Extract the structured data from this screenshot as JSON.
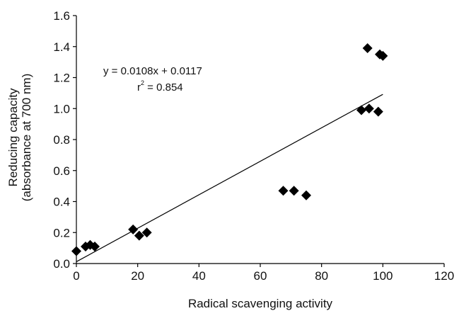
{
  "chart_data": {
    "type": "scatter",
    "xlabel": "Radical scavenging activity",
    "ylabel": [
      "Reducing capacity",
      "(absorbance at 700 nm)"
    ],
    "xlim": [
      0,
      120
    ],
    "ylim": [
      0.0,
      1.6
    ],
    "x_ticks": [
      0,
      20,
      40,
      60,
      80,
      100,
      120
    ],
    "y_ticks": [
      "0.0",
      "0.2",
      "0.4",
      "0.6",
      "0.8",
      "1.0",
      "1.2",
      "1.4",
      "1.6"
    ],
    "grid": false,
    "legend": "none",
    "marker": "diamond",
    "marker_color": "#000000",
    "series": [
      {
        "points": [
          {
            "x": 0,
            "y": 0.08
          },
          {
            "x": 3,
            "y": 0.11
          },
          {
            "x": 4.5,
            "y": 0.12
          },
          {
            "x": 6,
            "y": 0.11
          },
          {
            "x": 18.5,
            "y": 0.22
          },
          {
            "x": 20.5,
            "y": 0.18
          },
          {
            "x": 23,
            "y": 0.2
          },
          {
            "x": 67.5,
            "y": 0.47
          },
          {
            "x": 71,
            "y": 0.47
          },
          {
            "x": 75,
            "y": 0.44
          },
          {
            "x": 93,
            "y": 0.99
          },
          {
            "x": 95.5,
            "y": 1.0
          },
          {
            "x": 98.5,
            "y": 0.98
          },
          {
            "x": 95,
            "y": 1.39
          },
          {
            "x": 99,
            "y": 1.35
          },
          {
            "x": 100,
            "y": 1.34
          }
        ]
      }
    ],
    "trendline": {
      "slope": 0.0108,
      "intercept": 0.0117,
      "x_range": [
        0,
        100
      ],
      "color": "#000000"
    },
    "annotations": {
      "equation": "y = 0.0108x + 0.0117",
      "r_prefix": "r",
      "r_sup": "2",
      "r_value": " = 0.854"
    }
  }
}
